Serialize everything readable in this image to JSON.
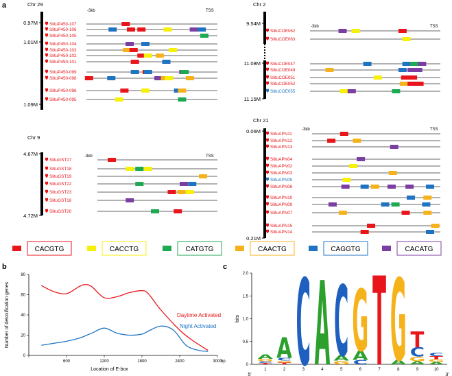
{
  "panels": {
    "a": "a",
    "b": "b",
    "c": "c"
  },
  "colors": {
    "red": "#e8161b",
    "yellow": "#f7f10a",
    "green": "#1eaa52",
    "orange": "#f6b21a",
    "blue": "#1f73c3",
    "purple": "#7b3ea3",
    "geneRed": "#e8161b",
    "geneBlue": "#1f73c3"
  },
  "blocks": [
    {
      "id": "chr29",
      "chr": "Chr 29",
      "positions": [
        "0.97M",
        "1.01M",
        "1.09M"
      ],
      "neg": "-3kb",
      "tss": "TSS",
      "genes": [
        {
          "name": "SlituP450-107",
          "color": "red",
          "motifs": [
            [
              "red",
              0.3
            ]
          ]
        },
        {
          "name": "SlituP450-106",
          "color": "red",
          "motifs": [
            [
              "blue",
              0.2
            ],
            [
              "red",
              0.34
            ],
            [
              "red",
              0.42
            ],
            [
              "yellow",
              0.62
            ],
            [
              "purple",
              0.82
            ],
            [
              "blue",
              0.88
            ]
          ]
        },
        {
          "name": "SlituP450-105",
          "color": "red",
          "motifs": [
            [
              "green",
              0.9
            ]
          ]
        },
        {
          "name": "SlituP450-104",
          "color": "red",
          "motifs": [
            [
              "purple",
              0.33
            ],
            [
              "blue",
              0.45
            ]
          ]
        },
        {
          "name": "SlituP450-103",
          "color": "red",
          "motifs": [
            [
              "orange",
              0.31
            ],
            [
              "red",
              0.36
            ],
            [
              "yellow",
              0.66
            ]
          ]
        },
        {
          "name": "SlituP450-102",
          "color": "red",
          "motifs": [
            [
              "red",
              0.42
            ],
            [
              "yellow",
              0.47
            ],
            [
              "orange",
              0.56
            ]
          ]
        },
        {
          "name": "SlituP450-101",
          "color": "red",
          "motifs": [
            [
              "red",
              0.37
            ],
            [
              "blue",
              0.61
            ]
          ]
        },
        {
          "name": "SlituP450-099",
          "color": "red",
          "motifs": [
            [
              "blue",
              0.37
            ],
            [
              "red",
              0.46
            ],
            [
              "blue",
              0.47
            ],
            [
              "purple",
              0.74
            ],
            [
              "green",
              0.75
            ]
          ]
        },
        {
          "name": "SlituP450-098",
          "color": "red",
          "motifs": [
            [
              "red",
              0.02
            ],
            [
              "blue",
              0.19
            ],
            [
              "purple",
              0.55
            ],
            [
              "orange",
              0.6
            ],
            [
              "yellow",
              0.63
            ],
            [
              "orange",
              0.79
            ]
          ]
        },
        {
          "name": "SlituP450-096",
          "color": "red",
          "motifs": [
            [
              "red",
              0.29
            ],
            [
              "yellow",
              0.45
            ],
            [
              "blue",
              0.7
            ],
            [
              "orange",
              0.73
            ]
          ]
        },
        {
          "name": "SlituP450-095",
          "color": "red",
          "motifs": [
            [
              "yellow",
              0.25
            ],
            [
              "green",
              0.73
            ]
          ]
        }
      ]
    },
    {
      "id": "chr2",
      "chr": "Chr 2",
      "positions": [
        "9.54M",
        "11.08M",
        "11.15M"
      ],
      "neg": "-3kb",
      "tss": "TSS",
      "genes": [
        {
          "name": "SlituCOE062",
          "color": "red",
          "motifs": [
            [
              "purple",
              0.25
            ],
            [
              "yellow",
              0.35
            ],
            [
              "red",
              0.71
            ]
          ]
        },
        {
          "name": "SlituCOE063",
          "color": "red",
          "motifs": [
            [
              "yellow",
              0.74
            ]
          ]
        },
        {
          "name": "SlituCOE047",
          "color": "red",
          "motifs": [
            [
              "blue",
              0.44
            ],
            [
              "blue",
              0.74
            ],
            [
              "green",
              0.8
            ],
            [
              "purple",
              0.86
            ]
          ]
        },
        {
          "name": "SlituCOE049",
          "color": "red",
          "motifs": [
            [
              "orange",
              0.15
            ],
            [
              "blue",
              0.71
            ],
            [
              "purple",
              0.78
            ],
            [
              "purple",
              0.83
            ]
          ]
        },
        {
          "name": "SlituCOE051",
          "color": "red",
          "motifs": [
            [
              "yellow",
              0.52
            ],
            [
              "red",
              0.73
            ],
            [
              "red",
              0.79
            ]
          ]
        },
        {
          "name": "SlituCOE052",
          "color": "red",
          "motifs": [
            [
              "orange",
              0.72
            ],
            [
              "red",
              0.78
            ],
            [
              "red",
              0.84
            ]
          ]
        },
        {
          "name": "SlituCOE055",
          "color": "blue",
          "motifs": [
            [
              "yellow",
              0.26
            ],
            [
              "purple",
              0.32
            ],
            [
              "green",
              0.66
            ]
          ]
        }
      ]
    },
    {
      "id": "chr9",
      "chr": "Chr 9",
      "positions": [
        "4.67M",
        "4.72M"
      ],
      "neg": "-3kb",
      "tss": "TSS",
      "genes": [
        {
          "name": "SlituGST17",
          "color": "red",
          "motifs": [
            [
              "red",
              0.12
            ]
          ]
        },
        {
          "name": "SlituGST18",
          "color": "red",
          "motifs": [
            [
              "yellow",
              0.27
            ],
            [
              "green",
              0.35
            ],
            [
              "yellow",
              0.42
            ]
          ]
        },
        {
          "name": "SlituGST19",
          "color": "red",
          "motifs": [
            [
              "orange",
              0.88
            ]
          ]
        },
        {
          "name": "SlituGST22",
          "color": "red",
          "motifs": [
            [
              "green",
              0.35
            ],
            [
              "purple",
              0.72
            ],
            [
              "blue",
              0.79
            ]
          ]
        },
        {
          "name": "SlituGST23",
          "color": "red",
          "motifs": [
            [
              "red",
              0.62
            ],
            [
              "orange",
              0.7
            ],
            [
              "yellow",
              0.77
            ]
          ]
        },
        {
          "name": "SlituGST16",
          "color": "red",
          "motifs": [
            [
              "purple",
              0.27
            ]
          ]
        },
        {
          "name": "SlituGST20",
          "color": "red",
          "motifs": [
            [
              "green",
              0.48
            ],
            [
              "red",
              0.67
            ]
          ]
        }
      ]
    },
    {
      "id": "chr21",
      "chr": "Chr 21",
      "positions": [
        "0.06M",
        "0.21M"
      ],
      "neg": "-3kb",
      "tss": "TSS",
      "genes": [
        {
          "name": "SlituAPN11",
          "color": "red",
          "motifs": [
            [
              "red",
              0.25
            ]
          ]
        },
        {
          "name": "SlituAPN12",
          "color": "red",
          "motifs": [
            [
              "red",
              0.15
            ],
            [
              "orange",
              0.35
            ]
          ]
        },
        {
          "name": "SlituAPN13",
          "color": "red",
          "motifs": [
            [
              "purple",
              0.64
            ]
          ]
        },
        {
          "name": "SlituAPN04",
          "color": "red",
          "motifs": [
            [
              "purple",
              0.38
            ]
          ]
        },
        {
          "name": "SlituAPN02",
          "color": "red",
          "motifs": [
            [
              "yellow",
              0.32
            ]
          ]
        },
        {
          "name": "SlituAPN03",
          "color": "red",
          "motifs": [
            [
              "orange",
              0.63
            ]
          ]
        },
        {
          "name": "SlituAPN05",
          "color": "blue",
          "motifs": [
            [
              "yellow",
              0.27
            ]
          ]
        },
        {
          "name": "SlituAPN06",
          "color": "red",
          "motifs": [
            [
              "purple",
              0.26
            ],
            [
              "blue",
              0.41
            ],
            [
              "orange",
              0.49
            ],
            [
              "purple",
              0.62
            ],
            [
              "purple",
              0.76
            ],
            [
              "blue",
              0.92
            ]
          ]
        },
        {
          "name": "SlituAPN10",
          "color": "red",
          "motifs": [
            [
              "blue",
              0.77
            ],
            [
              "orange",
              0.9
            ]
          ]
        },
        {
          "name": "SlituAPN09",
          "color": "red",
          "motifs": [
            [
              "purple",
              0.16
            ],
            [
              "blue",
              0.57
            ],
            [
              "green",
              0.65
            ],
            [
              "blue",
              0.89
            ]
          ]
        },
        {
          "name": "SlituAPN07",
          "color": "red",
          "motifs": [
            [
              "orange",
              0.24
            ],
            [
              "red",
              0.73
            ],
            [
              "orange",
              0.9
            ]
          ]
        },
        {
          "name": "SlituAPN15",
          "color": "red",
          "motifs": [
            [
              "red",
              0.46
            ],
            [
              "orange",
              0.96
            ]
          ]
        },
        {
          "name": "SlituAPN14",
          "color": "red",
          "motifs": [
            [
              "red",
              0.41
            ],
            [
              "blue",
              0.92
            ]
          ]
        }
      ]
    }
  ],
  "legend": [
    {
      "label": "CACGTG",
      "color": "red"
    },
    {
      "label": "CACCTG",
      "color": "yellow"
    },
    {
      "label": "CATGTG",
      "color": "green"
    },
    {
      "label": "CAACTG",
      "color": "orange"
    },
    {
      "label": "CAGGTG",
      "color": "blue"
    },
    {
      "label": "CACATG",
      "color": "purple"
    }
  ],
  "chart_data": [
    {
      "type": "line",
      "title": "",
      "xlabel": "Location of E-box",
      "ylabel": "Number of detoxification genes",
      "xlim": [
        0,
        3000
      ],
      "ylim": [
        0,
        80
      ],
      "x_ticks": [
        0,
        600,
        1200,
        1800,
        2400,
        3000
      ],
      "y_ticks": [
        0,
        20,
        40,
        60,
        80
      ],
      "x_unit": "bp",
      "series": [
        {
          "name": "Daytime Activated",
          "color": "#e8161b",
          "x": [
            200,
            400,
            600,
            800,
            900,
            1000,
            1200,
            1400,
            1600,
            1800,
            1900,
            2100,
            2400,
            2600,
            2850
          ],
          "y": [
            69,
            63,
            61,
            68,
            70,
            68,
            57,
            58,
            62,
            64,
            61,
            45,
            25,
            15,
            5
          ]
        },
        {
          "name": "Night Activated",
          "color": "#1f73c3",
          "x": [
            200,
            400,
            600,
            800,
            1000,
            1200,
            1400,
            1600,
            1800,
            1900,
            2100,
            2300,
            2500,
            2700,
            2850
          ],
          "y": [
            10,
            12,
            14,
            17,
            22,
            27,
            22,
            20,
            21,
            24,
            29,
            25,
            10,
            5,
            4
          ]
        }
      ]
    },
    {
      "type": "sequence-logo",
      "ylabel": "bits",
      "ylim": [
        0,
        2
      ],
      "y_ticks": [
        "0",
        "0.5",
        "1.0",
        "1.5",
        "2.0"
      ],
      "positions": [
        1,
        2,
        3,
        4,
        5,
        6,
        7,
        8,
        9,
        10
      ],
      "five_prime": "5'",
      "three_prime": "3'",
      "stacks": [
        [
          {
            "letter": "A",
            "h": 0.1
          },
          {
            "letter": "G",
            "h": 0.05
          },
          {
            "letter": "C",
            "h": 0.04
          },
          {
            "letter": "T",
            "h": 0.03
          }
        ],
        [
          {
            "letter": "A",
            "h": 0.45
          },
          {
            "letter": "C",
            "h": 0.06
          },
          {
            "letter": "T",
            "h": 0.04
          },
          {
            "letter": "G",
            "h": 0.04
          }
        ],
        [
          {
            "letter": "C",
            "h": 1.9
          }
        ],
        [
          {
            "letter": "A",
            "h": 1.85
          }
        ],
        [
          {
            "letter": "C",
            "h": 1.55
          },
          {
            "letter": "A",
            "h": 0.12
          },
          {
            "letter": "G",
            "h": 0.08
          }
        ],
        [
          {
            "letter": "G",
            "h": 1.35
          },
          {
            "letter": "A",
            "h": 0.2
          },
          {
            "letter": "C",
            "h": 0.1
          }
        ],
        [
          {
            "letter": "T",
            "h": 1.95
          }
        ],
        [
          {
            "letter": "G",
            "h": 1.8
          },
          {
            "letter": "A",
            "h": 0.1
          }
        ],
        [
          {
            "letter": "T",
            "h": 0.35
          },
          {
            "letter": "C",
            "h": 0.2
          },
          {
            "letter": "G",
            "h": 0.1
          },
          {
            "letter": "A",
            "h": 0.07
          }
        ],
        [
          {
            "letter": "C",
            "h": 0.08
          },
          {
            "letter": "T",
            "h": 0.07
          },
          {
            "letter": "G",
            "h": 0.06
          },
          {
            "letter": "A",
            "h": 0.05
          }
        ]
      ]
    }
  ]
}
